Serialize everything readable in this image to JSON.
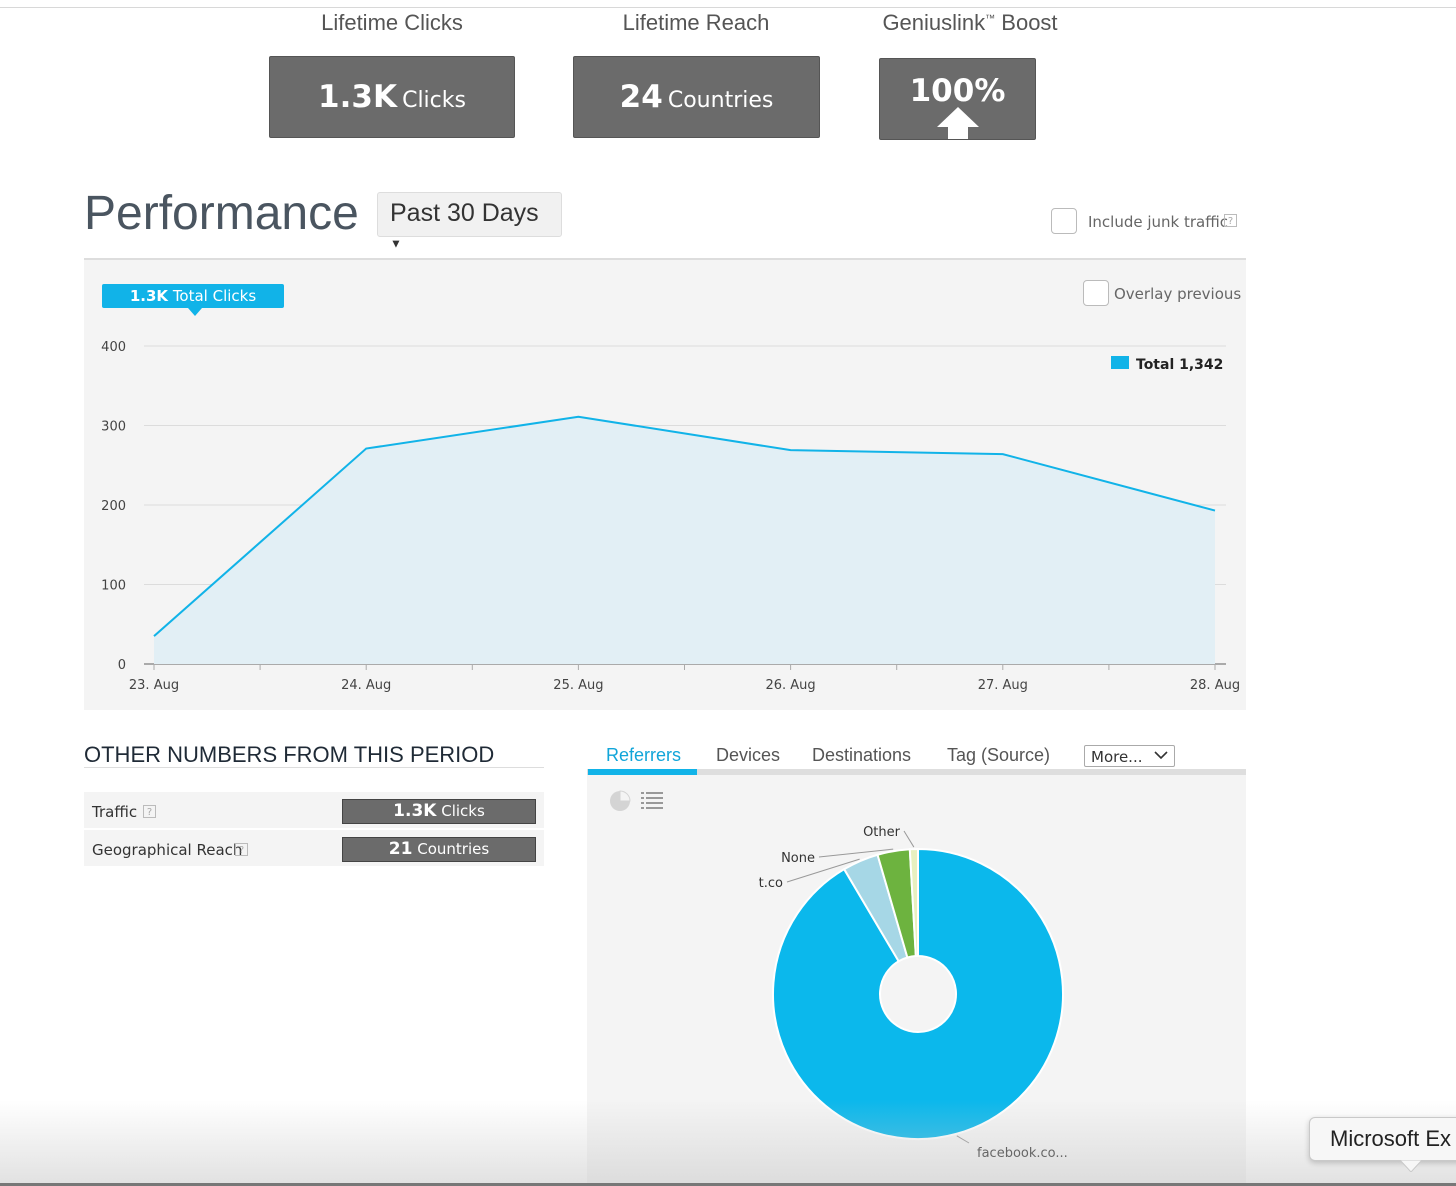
{
  "stats": [
    {
      "title": "Lifetime Clicks",
      "num": "1.3K",
      "unit": "Clicks"
    },
    {
      "title": "Lifetime Reach",
      "num": "24",
      "unit": "Countries"
    }
  ],
  "boost": {
    "title": "Geniuslink",
    "tm": "™",
    "suffix": "Boost",
    "value": "100%"
  },
  "performance": {
    "title": "Performance",
    "range_label": "Past 30 Days",
    "junk_label": "Include junk traffic",
    "help_glyph": "?"
  },
  "chart_panel": {
    "pill_num": "1.3K",
    "pill_text": "Total Clicks",
    "overlay_label": "Overlay previous",
    "legend_label": "Total 1,342",
    "accent_color": "#11b3e8",
    "fill_color": "#e2eff5"
  },
  "chart_data": {
    "type": "area",
    "x": [
      "23. Aug",
      "24. Aug",
      "25. Aug",
      "26. Aug",
      "27. Aug",
      "28. Aug"
    ],
    "series": [
      {
        "name": "Total",
        "values": [
          35,
          271,
          311,
          269,
          264,
          193
        ]
      }
    ],
    "yticks": [
      0,
      100,
      200,
      300,
      400
    ],
    "ylim": [
      0,
      400
    ],
    "grid": true,
    "legend": "top-right"
  },
  "other_numbers": {
    "heading": "OTHER NUMBERS FROM THIS PERIOD",
    "rows": [
      {
        "label": "Traffic",
        "num": "1.3K",
        "unit": "Clicks"
      },
      {
        "label": "Geographical Reach",
        "num": "21",
        "unit": "Countries"
      }
    ]
  },
  "tabs": {
    "items": [
      "Referrers",
      "Devices",
      "Destinations",
      "Tag (Source)"
    ],
    "active": "Referrers",
    "more_label": "More..."
  },
  "pie": {
    "icons": [
      "pie-chart-icon",
      "list-icon"
    ],
    "slices": [
      {
        "label": "facebook.co...",
        "value": 91.5,
        "color": "#0bb8ec"
      },
      {
        "label": "t.co",
        "value": 4.0,
        "color": "#a6d7e6"
      },
      {
        "label": "None",
        "value": 3.6,
        "color": "#6db33f"
      },
      {
        "label": "Other",
        "value": 0.9,
        "color": "#e8f0c0"
      }
    ]
  },
  "tooltip": {
    "text": "Microsoft Ex"
  }
}
